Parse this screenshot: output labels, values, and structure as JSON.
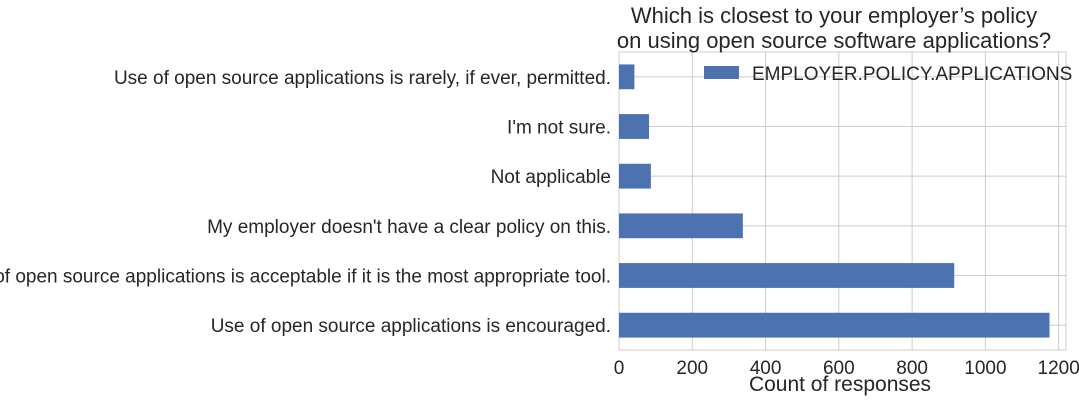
{
  "chart_data": {
    "type": "bar",
    "orientation": "horizontal",
    "title_lines": [
      "Which is closest to your employer’s policy",
      "on using open source software applications?"
    ],
    "xlabel": "Count of responses",
    "ylabel": "",
    "xlim": [
      0,
      1220
    ],
    "xticks": [
      0,
      200,
      400,
      600,
      800,
      1000,
      1200
    ],
    "grid": true,
    "legend_position": "top-right",
    "bar_color": "#4c72b0",
    "categories": [
      "Use of open source applications is encouraged.",
      "Use of open source applications is acceptable if it is the most appropriate tool.",
      "My employer doesn't have a clear policy on this.",
      "Not applicable",
      "I'm not sure.",
      "Use of open source applications is rarely, if ever, permitted."
    ],
    "series": [
      {
        "name": "EMPLOYER.POLICY.APPLICATIONS",
        "values": [
          1175,
          915,
          338,
          87,
          82,
          42
        ]
      }
    ]
  }
}
